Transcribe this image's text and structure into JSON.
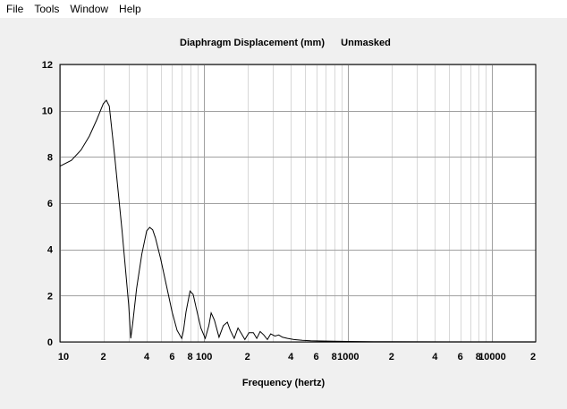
{
  "menu": {
    "items": [
      "File",
      "Tools",
      "Window",
      "Help"
    ]
  },
  "colors": {
    "background": "#f0f0f0",
    "plot_background": "#ffffff",
    "grid_major": "#a0a0a0",
    "grid_minor": "#d8d8d8",
    "curve": "#000000"
  },
  "chart_data": {
    "type": "line",
    "title": "Diaphragm Displacement (mm)",
    "subtitle": "Unmasked",
    "xlabel": "Frequency (hertz)",
    "ylabel": "",
    "x_scale": "log",
    "xlim": [
      10,
      20000
    ],
    "ylim": [
      0,
      12
    ],
    "grid": true,
    "y_ticks": [
      {
        "value": 0,
        "label": "0"
      },
      {
        "value": 2,
        "label": "2"
      },
      {
        "value": 4,
        "label": "4"
      },
      {
        "value": 6,
        "label": "6"
      },
      {
        "value": 8,
        "label": "8"
      },
      {
        "value": 10,
        "label": "10"
      },
      {
        "value": 12,
        "label": "12"
      }
    ],
    "x_ticks": [
      {
        "value": 10,
        "label": "10"
      },
      {
        "value": 20,
        "label": "2"
      },
      {
        "value": 40,
        "label": "4"
      },
      {
        "value": 60,
        "label": "6"
      },
      {
        "value": 80,
        "label": "8"
      },
      {
        "value": 100,
        "label": "100"
      },
      {
        "value": 200,
        "label": "2"
      },
      {
        "value": 400,
        "label": "4"
      },
      {
        "value": 600,
        "label": "6"
      },
      {
        "value": 800,
        "label": "8"
      },
      {
        "value": 1000,
        "label": "1000"
      },
      {
        "value": 2000,
        "label": "2"
      },
      {
        "value": 4000,
        "label": "4"
      },
      {
        "value": 6000,
        "label": "6"
      },
      {
        "value": 8000,
        "label": "8"
      },
      {
        "value": 10000,
        "label": "10000"
      },
      {
        "value": 20000,
        "label": "2"
      }
    ],
    "series": [
      {
        "x": [
          10,
          12,
          14,
          16,
          18,
          20,
          21,
          22,
          24,
          27,
          30,
          31,
          32,
          34,
          37,
          40,
          42,
          44,
          46,
          50,
          55,
          60,
          65,
          70,
          72,
          75,
          80,
          84,
          88,
          95,
          102,
          108,
          112,
          118,
          127,
          136,
          145,
          152,
          162,
          172,
          182,
          192,
          205,
          220,
          232,
          245,
          260,
          275,
          290,
          310,
          330,
          350,
          380,
          420,
          480,
          550,
          650,
          800,
          1000,
          1500,
          2000,
          5000,
          10000,
          20000
        ],
        "values": [
          7.6,
          7.85,
          8.3,
          8.9,
          9.6,
          10.3,
          10.45,
          10.2,
          8.0,
          4.8,
          1.6,
          0.15,
          0.8,
          2.3,
          3.8,
          4.8,
          4.95,
          4.85,
          4.5,
          3.6,
          2.4,
          1.3,
          0.5,
          0.15,
          0.5,
          1.3,
          2.2,
          2.05,
          1.5,
          0.6,
          0.15,
          0.7,
          1.25,
          0.95,
          0.2,
          0.7,
          0.85,
          0.5,
          0.15,
          0.6,
          0.35,
          0.1,
          0.4,
          0.4,
          0.15,
          0.45,
          0.3,
          0.1,
          0.35,
          0.25,
          0.3,
          0.2,
          0.15,
          0.1,
          0.07,
          0.05,
          0.04,
          0.03,
          0.02,
          0.01,
          0.01,
          0.005,
          0.003,
          0.002
        ]
      }
    ]
  }
}
